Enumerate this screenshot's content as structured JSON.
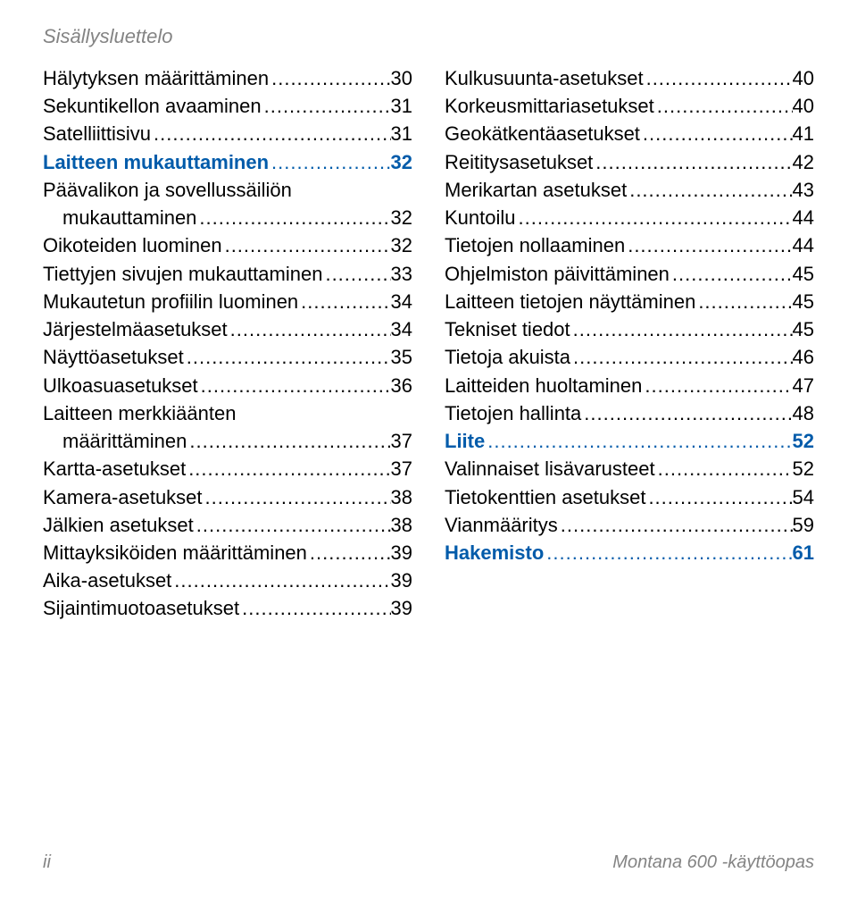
{
  "header": "Sisällysluettelo",
  "footer": {
    "left": "ii",
    "right": "Montana 600 -käyttöopas"
  },
  "dots": ".................................................................................................",
  "columns": [
    [
      {
        "label": "Hälytyksen määrittäminen",
        "page": "30",
        "section": false,
        "indent": false
      },
      {
        "label": "Sekuntikellon avaaminen",
        "page": "31",
        "section": false,
        "indent": false
      },
      {
        "label": "Satelliittisivu",
        "page": "31",
        "section": false,
        "indent": false
      },
      {
        "label": "Laitteen mukauttaminen",
        "page": "32",
        "section": true,
        "indent": false
      },
      {
        "label": "Päävalikon ja sovellussäiliön mukauttaminen",
        "page": "32",
        "section": false,
        "indent": true,
        "wrap": true
      },
      {
        "label": "Oikoteiden luominen",
        "page": "32",
        "section": false,
        "indent": false
      },
      {
        "label": "Tiettyjen sivujen mukauttaminen",
        "page": "33",
        "section": false,
        "indent": false
      },
      {
        "label": "Mukautetun profiilin luominen",
        "page": "34",
        "section": false,
        "indent": false
      },
      {
        "label": "Järjestelmäasetukset",
        "page": "34",
        "section": false,
        "indent": false
      },
      {
        "label": "Näyttöasetukset",
        "page": "35",
        "section": false,
        "indent": false
      },
      {
        "label": "Ulkoasuasetukset",
        "page": "36",
        "section": false,
        "indent": false
      },
      {
        "label": "Laitteen merkkiäänten määrittäminen",
        "page": "37",
        "section": false,
        "indent": true,
        "wrap": true
      },
      {
        "label": "Kartta-asetukset",
        "page": "37",
        "section": false,
        "indent": false
      },
      {
        "label": "Kamera-asetukset",
        "page": "38",
        "section": false,
        "indent": false
      },
      {
        "label": "Jälkien asetukset",
        "page": "38",
        "section": false,
        "indent": false
      },
      {
        "label": "Mittayksiköiden määrittäminen",
        "page": "39",
        "section": false,
        "indent": false
      },
      {
        "label": "Aika-asetukset",
        "page": "39",
        "section": false,
        "indent": false
      },
      {
        "label": "Sijaintimuotoasetukset",
        "page": "39",
        "section": false,
        "indent": false
      }
    ],
    [
      {
        "label": "Kulkusuunta-asetukset",
        "page": "40",
        "section": false,
        "indent": false
      },
      {
        "label": "Korkeusmittariasetukset",
        "page": "40",
        "section": false,
        "indent": false
      },
      {
        "label": "Geokätkentäasetukset",
        "page": "41",
        "section": false,
        "indent": false
      },
      {
        "label": "Reititysasetukset",
        "page": "42",
        "section": false,
        "indent": false
      },
      {
        "label": "Merikartan asetukset",
        "page": "43",
        "section": false,
        "indent": false
      },
      {
        "label": "Kuntoilu",
        "page": "44",
        "section": false,
        "indent": false
      },
      {
        "label": "Tietojen nollaaminen",
        "page": "44",
        "section": false,
        "indent": false
      },
      {
        "label": "Ohjelmiston päivittäminen",
        "page": "45",
        "section": false,
        "indent": false
      },
      {
        "label": "Laitteen tietojen näyttäminen",
        "page": "45",
        "section": false,
        "indent": false
      },
      {
        "label": "Tekniset tiedot",
        "page": "45",
        "section": false,
        "indent": false
      },
      {
        "label": "Tietoja akuista",
        "page": "46",
        "section": false,
        "indent": false
      },
      {
        "label": "Laitteiden huoltaminen",
        "page": "47",
        "section": false,
        "indent": false
      },
      {
        "label": "Tietojen hallinta",
        "page": "48",
        "section": false,
        "indent": false
      },
      {
        "label": "Liite",
        "page": "52",
        "section": true,
        "indent": false
      },
      {
        "label": "Valinnaiset lisävarusteet",
        "page": "52",
        "section": false,
        "indent": false
      },
      {
        "label": "Tietokenttien asetukset",
        "page": "54",
        "section": false,
        "indent": false
      },
      {
        "label": "Vianmääritys",
        "page": "59",
        "section": false,
        "indent": false
      },
      {
        "label": "Hakemisto",
        "page": "61",
        "section": true,
        "indent": false
      }
    ]
  ]
}
